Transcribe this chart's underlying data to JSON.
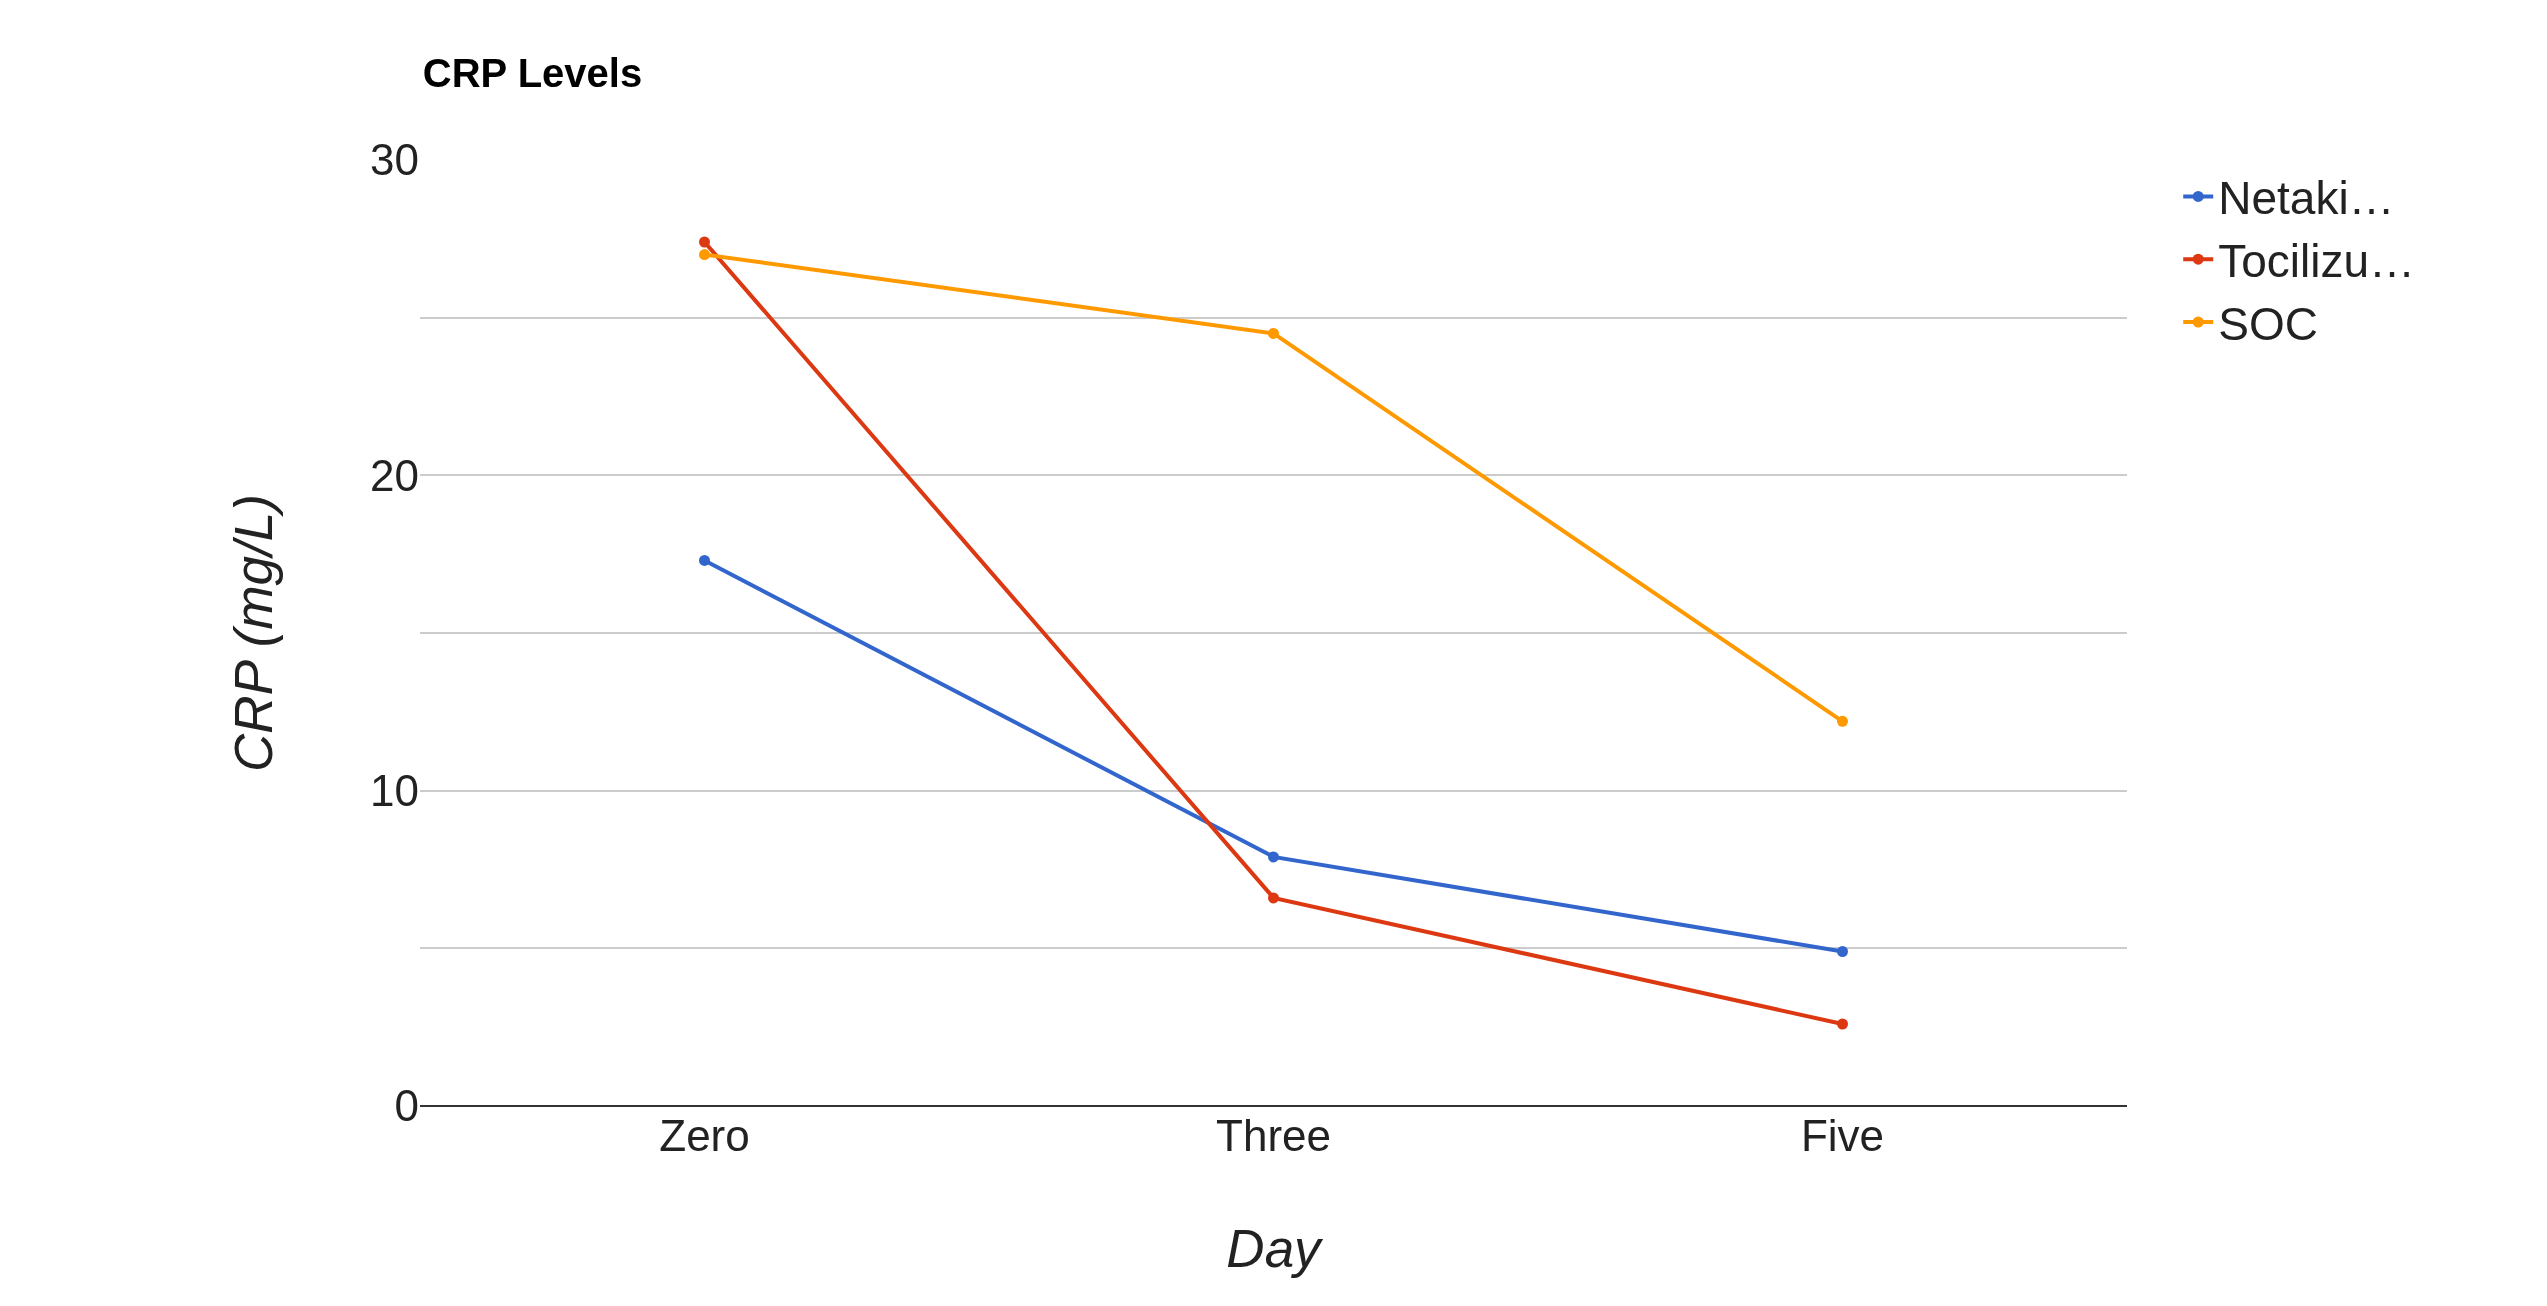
{
  "chart_data": {
    "type": "line",
    "title": "CRP Levels",
    "xlabel": "Day",
    "ylabel": "CRP (mg/L)",
    "categories": [
      "Zero",
      "Three",
      "Five"
    ],
    "series": [
      {
        "name": "Netaki…",
        "color": "#3366cc",
        "values": [
          17.3,
          7.9,
          4.9
        ]
      },
      {
        "name": "Tocilizu…",
        "color": "#dc3912",
        "values": [
          27.4,
          6.6,
          2.6
        ]
      },
      {
        "name": "SOC",
        "color": "#ff9900",
        "values": [
          27.0,
          24.5,
          12.2
        ]
      }
    ],
    "ylim": [
      0,
      30
    ],
    "yticks": [
      0,
      {
        "value": 5,
        "label": null
      },
      10,
      {
        "value": 15,
        "label": null
      },
      20,
      {
        "value": 25,
        "label": null
      },
      30
    ],
    "grid": "y",
    "legend": "top right",
    "marker": "circle",
    "line_style": "solid"
  }
}
